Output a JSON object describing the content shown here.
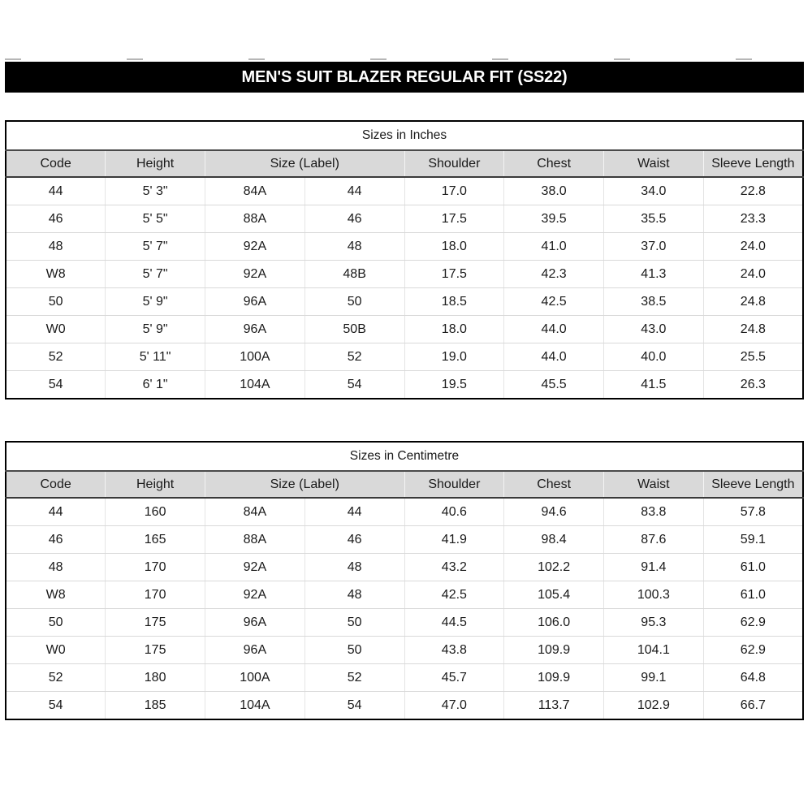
{
  "title": "MEN'S SUIT BLAZER REGULAR FIT (SS22)",
  "colors": {
    "title_bg": "#000000",
    "title_text": "#ffffff",
    "header_bg": "#d9d9d9",
    "outer_border": "#000000",
    "grid_light": "#d9d9d9",
    "text": "#1a1a1a"
  },
  "tables": [
    {
      "caption": "Sizes in Inches",
      "columns": [
        "Code",
        "Height",
        "Size (Label)",
        "Shoulder",
        "Chest",
        "Waist",
        "Sleeve Length"
      ],
      "colspans": [
        1,
        1,
        2,
        1,
        1,
        1,
        1
      ],
      "rows": [
        [
          "44",
          "5' 3\"",
          "84A",
          "44",
          "17.0",
          "38.0",
          "34.0",
          "22.8"
        ],
        [
          "46",
          "5' 5\"",
          "88A",
          "46",
          "17.5",
          "39.5",
          "35.5",
          "23.3"
        ],
        [
          "48",
          "5' 7\"",
          "92A",
          "48",
          "18.0",
          "41.0",
          "37.0",
          "24.0"
        ],
        [
          "W8",
          "5' 7\"",
          "92A",
          "48B",
          "17.5",
          "42.3",
          "41.3",
          "24.0"
        ],
        [
          "50",
          "5' 9\"",
          "96A",
          "50",
          "18.5",
          "42.5",
          "38.5",
          "24.8"
        ],
        [
          "W0",
          "5' 9\"",
          "96A",
          "50B",
          "18.0",
          "44.0",
          "43.0",
          "24.8"
        ],
        [
          "52",
          "5' 11\"",
          "100A",
          "52",
          "19.0",
          "44.0",
          "40.0",
          "25.5"
        ],
        [
          "54",
          "6' 1\"",
          "104A",
          "54",
          "19.5",
          "45.5",
          "41.5",
          "26.3"
        ]
      ]
    },
    {
      "caption": "Sizes in Centimetre",
      "columns": [
        "Code",
        "Height",
        "Size (Label)",
        "Shoulder",
        "Chest",
        "Waist",
        "Sleeve Length"
      ],
      "colspans": [
        1,
        1,
        2,
        1,
        1,
        1,
        1
      ],
      "rows": [
        [
          "44",
          "160",
          "84A",
          "44",
          "40.6",
          "94.6",
          "83.8",
          "57.8"
        ],
        [
          "46",
          "165",
          "88A",
          "46",
          "41.9",
          "98.4",
          "87.6",
          "59.1"
        ],
        [
          "48",
          "170",
          "92A",
          "48",
          "43.2",
          "102.2",
          "91.4",
          "61.0"
        ],
        [
          "W8",
          "170",
          "92A",
          "48",
          "42.5",
          "105.4",
          "100.3",
          "61.0"
        ],
        [
          "50",
          "175",
          "96A",
          "50",
          "44.5",
          "106.0",
          "95.3",
          "62.9"
        ],
        [
          "W0",
          "175",
          "96A",
          "50",
          "43.8",
          "109.9",
          "104.1",
          "62.9"
        ],
        [
          "52",
          "180",
          "100A",
          "52",
          "45.7",
          "109.9",
          "99.1",
          "64.8"
        ],
        [
          "54",
          "185",
          "104A",
          "54",
          "47.0",
          "113.7",
          "102.9",
          "66.7"
        ]
      ]
    }
  ]
}
